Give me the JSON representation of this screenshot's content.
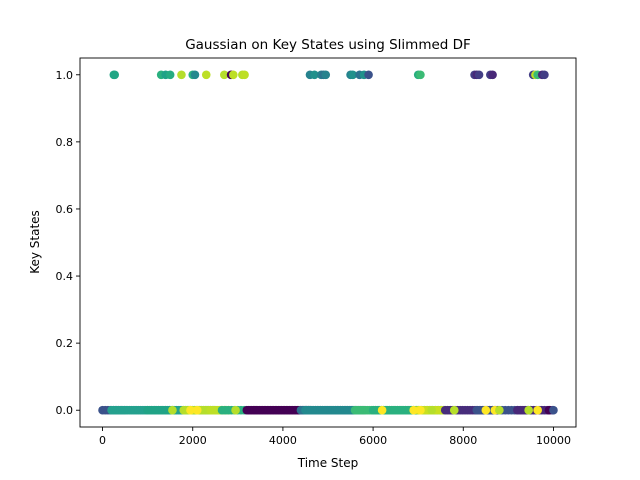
{
  "chart_data": {
    "type": "scatter",
    "title": "Gaussian on Key States using Slimmed DF",
    "xlabel": "Time Step",
    "ylabel": "Key States",
    "xlim": [
      -500,
      10500
    ],
    "ylim": [
      -0.05,
      1.05
    ],
    "xticks": [
      0,
      2000,
      4000,
      6000,
      8000,
      10000
    ],
    "xtick_labels": [
      "0",
      "2000",
      "4000",
      "6000",
      "8000",
      "10000"
    ],
    "yticks": [
      0.0,
      0.2,
      0.4,
      0.6,
      0.8,
      1.0
    ],
    "ytick_labels": [
      "0.0",
      "0.2",
      "0.4",
      "0.6",
      "0.8",
      "1.0"
    ],
    "grid": false,
    "legend": "none",
    "colormap": "viridis",
    "points": [
      {
        "x": 250,
        "y": 1,
        "c": "#21a685"
      },
      {
        "x": 270,
        "y": 1,
        "c": "#21a685"
      },
      {
        "x": 1300,
        "y": 1,
        "c": "#2ab07f"
      },
      {
        "x": 1400,
        "y": 1,
        "c": "#1fa287"
      },
      {
        "x": 1500,
        "y": 1,
        "c": "#25ab82"
      },
      {
        "x": 1750,
        "y": 1,
        "c": "#b5de2b"
      },
      {
        "x": 2000,
        "y": 1,
        "c": "#2ab07f"
      },
      {
        "x": 2050,
        "y": 1,
        "c": "#23898e"
      },
      {
        "x": 2300,
        "y": 1,
        "c": "#bddf26"
      },
      {
        "x": 2700,
        "y": 1,
        "c": "#b5de2b"
      },
      {
        "x": 2850,
        "y": 1,
        "c": "#440154"
      },
      {
        "x": 2900,
        "y": 1,
        "c": "#bddf26"
      },
      {
        "x": 3100,
        "y": 1,
        "c": "#b5de2b"
      },
      {
        "x": 3150,
        "y": 1,
        "c": "#bddf26"
      },
      {
        "x": 4600,
        "y": 1,
        "c": "#26828e"
      },
      {
        "x": 4700,
        "y": 1,
        "c": "#21918c"
      },
      {
        "x": 4850,
        "y": 1,
        "c": "#26828e"
      },
      {
        "x": 4900,
        "y": 1,
        "c": "#2c728e"
      },
      {
        "x": 4950,
        "y": 1,
        "c": "#26828e"
      },
      {
        "x": 5500,
        "y": 1,
        "c": "#26828e"
      },
      {
        "x": 5550,
        "y": 1,
        "c": "#21918c"
      },
      {
        "x": 5700,
        "y": 1,
        "c": "#2c728e"
      },
      {
        "x": 5800,
        "y": 1,
        "c": "#21918c"
      },
      {
        "x": 5900,
        "y": 1,
        "c": "#3b528b"
      },
      {
        "x": 7000,
        "y": 1,
        "c": "#28ae80"
      },
      {
        "x": 7050,
        "y": 1,
        "c": "#3bbb75"
      },
      {
        "x": 8250,
        "y": 1,
        "c": "#433e85"
      },
      {
        "x": 8300,
        "y": 1,
        "c": "#482878"
      },
      {
        "x": 8350,
        "y": 1,
        "c": "#433e85"
      },
      {
        "x": 8600,
        "y": 1,
        "c": "#433e85"
      },
      {
        "x": 8650,
        "y": 1,
        "c": "#482878"
      },
      {
        "x": 9550,
        "y": 1,
        "c": "#433e85"
      },
      {
        "x": 9600,
        "y": 1,
        "c": "#bddf26"
      },
      {
        "x": 9650,
        "y": 1,
        "c": "#3bbb75"
      },
      {
        "x": 9750,
        "y": 1,
        "c": "#482878"
      },
      {
        "x": 9800,
        "y": 1,
        "c": "#433e85"
      }
    ],
    "bottom_segments": [
      {
        "from": 0,
        "to": 500,
        "step": 60,
        "c": "#3b528b"
      },
      {
        "from": 200,
        "to": 2500,
        "step": 40,
        "c": "#25a18e"
      },
      {
        "from": 1000,
        "to": 1600,
        "step": 80,
        "c": "#20a386"
      },
      {
        "from": 1800,
        "to": 2800,
        "step": 50,
        "c": "#b5de2b"
      },
      {
        "from": 2400,
        "to": 2700,
        "step": 60,
        "c": "#bddf26"
      },
      {
        "from": 2650,
        "to": 3200,
        "step": 70,
        "c": "#2ab07f"
      },
      {
        "from": 3200,
        "to": 4600,
        "step": 35,
        "c": "#440154"
      },
      {
        "from": 4400,
        "to": 5800,
        "step": 40,
        "c": "#2c728e"
      },
      {
        "from": 4500,
        "to": 5600,
        "step": 55,
        "c": "#23898e"
      },
      {
        "from": 5600,
        "to": 7000,
        "step": 45,
        "c": "#3bbb75"
      },
      {
        "from": 6000,
        "to": 7600,
        "step": 60,
        "c": "#2ab07f"
      },
      {
        "from": 7000,
        "to": 7800,
        "step": 65,
        "c": "#c8e020"
      },
      {
        "from": 7600,
        "to": 8800,
        "step": 55,
        "c": "#472d7b"
      },
      {
        "from": 8300,
        "to": 9500,
        "step": 70,
        "c": "#3b528b"
      },
      {
        "from": 9200,
        "to": 10000,
        "step": 60,
        "c": "#482878"
      }
    ],
    "bottom_points": [
      {
        "x": 1550,
        "c": "#b5de2b"
      },
      {
        "x": 1950,
        "c": "#fde725"
      },
      {
        "x": 2100,
        "c": "#fde725"
      },
      {
        "x": 2950,
        "c": "#b5de2b"
      },
      {
        "x": 6200,
        "c": "#fde725"
      },
      {
        "x": 6900,
        "c": "#fde725"
      },
      {
        "x": 7050,
        "c": "#fde725"
      },
      {
        "x": 7300,
        "c": "#b5de2b"
      },
      {
        "x": 7800,
        "c": "#b5de2b"
      },
      {
        "x": 8500,
        "c": "#fde725"
      },
      {
        "x": 8700,
        "c": "#fde725"
      },
      {
        "x": 8800,
        "c": "#b5de2b"
      },
      {
        "x": 9450,
        "c": "#b5de2b"
      },
      {
        "x": 9650,
        "c": "#fde725"
      },
      {
        "x": 9900,
        "c": "#440154"
      },
      {
        "x": 10000,
        "c": "#3b528b"
      }
    ]
  }
}
